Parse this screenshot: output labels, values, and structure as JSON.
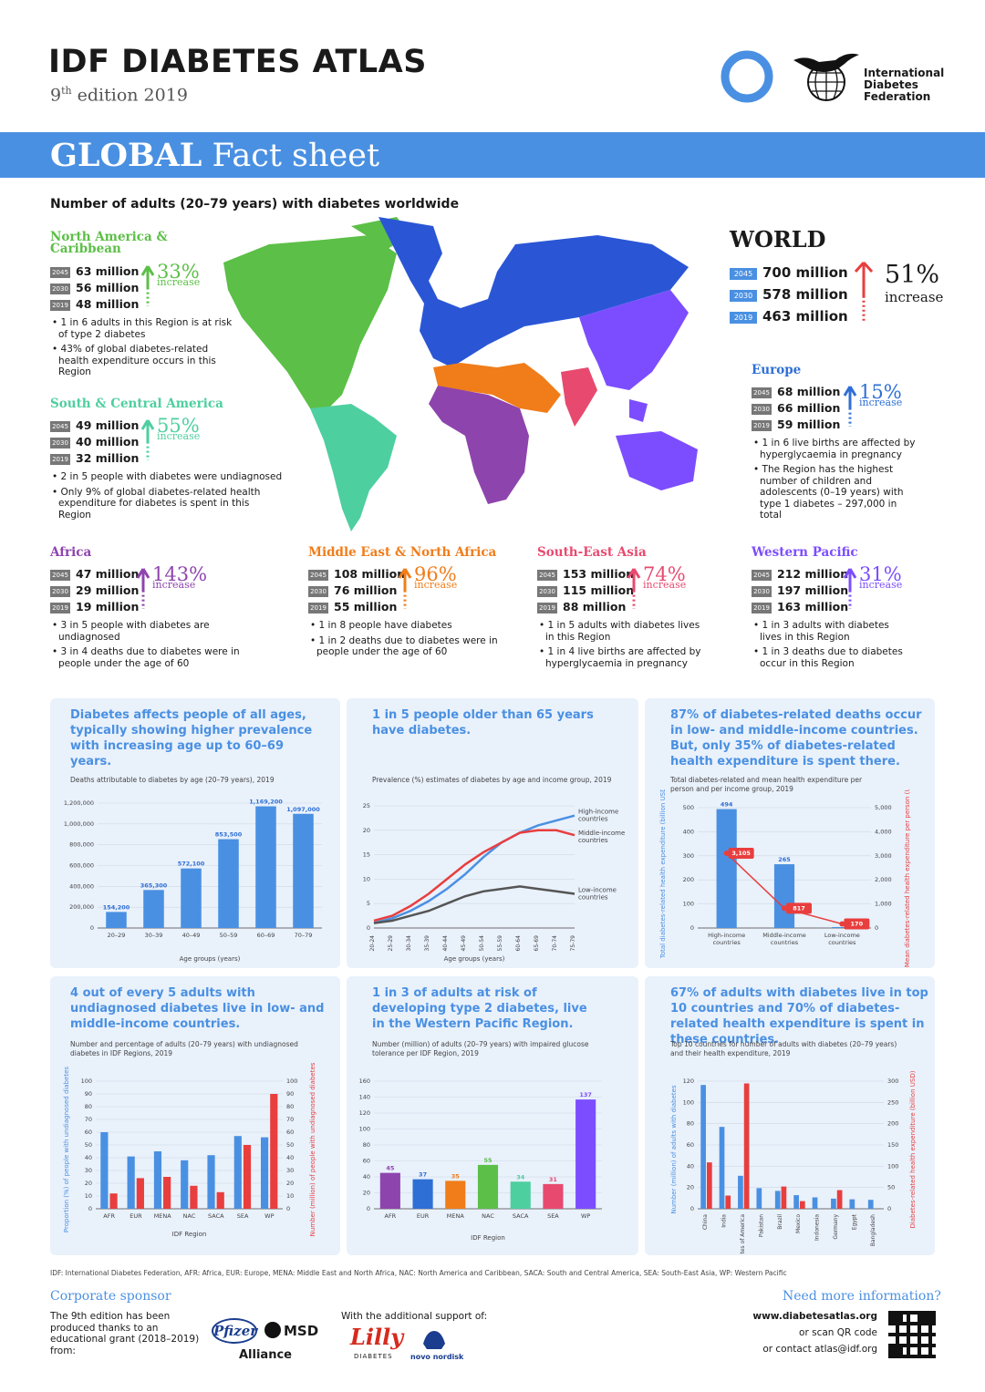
{
  "header": {
    "title": "IDF DIABETES ATLAS",
    "edition_num": "9",
    "edition_sup": "th",
    "edition_rest": " edition 2019",
    "org": [
      "International",
      "Diabetes",
      "Federation"
    ]
  },
  "band": {
    "bold": "GLOBAL",
    "rest": " Fact sheet"
  },
  "map": {
    "title": "Number of adults (20–79 years) with diabetes worldwide"
  },
  "regions": {
    "nac": {
      "name": "North America & Caribbean",
      "stats": [
        {
          "year": "2045",
          "value": "63 million"
        },
        {
          "year": "2030",
          "value": "56 million"
        },
        {
          "year": "2019",
          "value": "48 million"
        }
      ],
      "pct": "33%",
      "inc": "increase",
      "color": "#5cbf47",
      "bullets": [
        "1 in 6 adults in this Region is at risk of type 2 diabetes",
        "43% of global diabetes-related health expenditure occurs in this Region"
      ]
    },
    "saca": {
      "name": "South & Central America",
      "stats": [
        {
          "year": "2045",
          "value": "49 million"
        },
        {
          "year": "2030",
          "value": "40 million"
        },
        {
          "year": "2019",
          "value": "32 million"
        }
      ],
      "pct": "55%",
      "inc": "increase",
      "color": "#4ecfa0",
      "bullets": [
        "2 in 5 people with diabetes were undiagnosed",
        "Only 9% of global diabetes-related health expenditure for diabetes is spent in this Region"
      ]
    },
    "world": {
      "name": "WORLD",
      "stats": [
        {
          "year": "2045",
          "value": "700 million"
        },
        {
          "year": "2030",
          "value": "578 million"
        },
        {
          "year": "2019",
          "value": "463 million"
        }
      ],
      "pct": "51%",
      "inc": "increase",
      "color": "#e83e3e"
    },
    "eur": {
      "name": "Europe",
      "stats": [
        {
          "year": "2045",
          "value": "68 million"
        },
        {
          "year": "2030",
          "value": "66 million"
        },
        {
          "year": "2019",
          "value": "59 million"
        }
      ],
      "pct": "15%",
      "inc": "increase",
      "color": "#2e6fd6",
      "bullets": [
        "1 in 6 live births are affected by hyperglycaemia in pregnancy",
        "The Region has the highest number of children and adolescents (0–19 years) with type 1 diabetes – 297,000 in total"
      ]
    },
    "afr": {
      "name": "Africa",
      "stats": [
        {
          "year": "2045",
          "value": "47 million"
        },
        {
          "year": "2030",
          "value": "29 million"
        },
        {
          "year": "2019",
          "value": "19 million"
        }
      ],
      "pct": "143%",
      "inc": "increase",
      "color": "#8e44ad",
      "bullets": [
        "3 in 5 people with diabetes are undiagnosed",
        "3 in 4 deaths due to diabetes were in people under the age of 60"
      ]
    },
    "mena": {
      "name": "Middle East & North Africa",
      "stats": [
        {
          "year": "2045",
          "value": "108 million"
        },
        {
          "year": "2030",
          "value": "76 million"
        },
        {
          "year": "2019",
          "value": "55 million"
        }
      ],
      "pct": "96%",
      "inc": "increase",
      "color": "#f07d1a",
      "bullets": [
        "1 in 8 people have diabetes",
        "1 in 2 deaths due to diabetes were in people under the age of 60"
      ]
    },
    "sea": {
      "name": "South-East Asia",
      "stats": [
        {
          "year": "2045",
          "value": "153 million"
        },
        {
          "year": "2030",
          "value": "115 million"
        },
        {
          "year": "2019",
          "value": "88 million"
        }
      ],
      "pct": "74%",
      "inc": "increase",
      "color": "#e84a6f",
      "bullets": [
        "1 in 5 adults with diabetes lives in this Region",
        "1 in 4 live births are affected by hyperglycaemia in pregnancy"
      ]
    },
    "wp": {
      "name": "Western Pacific",
      "stats": [
        {
          "year": "2045",
          "value": "212 million"
        },
        {
          "year": "2030",
          "value": "197 million"
        },
        {
          "year": "2019",
          "value": "163 million"
        }
      ],
      "pct": "31%",
      "inc": "increase",
      "color": "#7c4dff",
      "bullets": [
        "1 in 3 adults with diabetes lives in this Region",
        "1 in 3 deaths due to diabetes occur in this Region"
      ]
    }
  },
  "cards": {
    "c1": {
      "head": "Diabetes affects people of all ages, typically showing higher prevalence with increasing age up to 60–69 years.",
      "sub": "Deaths attributable to diabetes by age (20–79 years), 2019"
    },
    "c2": {
      "head": "1 in 5 people older than 65 years have diabetes.",
      "sub": "Prevalence (%) estimates of diabetes by age and income group, 2019"
    },
    "c3": {
      "head": "87% of diabetes-related deaths occur in low- and middle-income countries. But, only 35% of diabetes-related health expenditure is spent there.",
      "sub": "Total diabetes-related and mean health expenditure per person and per income group, 2019"
    },
    "c4": {
      "head": "4 out of every 5 adults with undiagnosed diabetes live in low- and middle-income countries.",
      "sub": "Number and percentage of adults (20–79 years) with undiagnosed diabetes in IDF Regions, 2019"
    },
    "c5": {
      "head": "1 in 3 of adults at risk of developing type 2 diabetes, live in the Western Pacific Region.",
      "sub": "Number (million) of adults (20–79 years) with impaired glucose tolerance per IDF Region, 2019"
    },
    "c6": {
      "head": "67% of adults with diabetes live in top 10 countries and 70% of diabetes-related health expenditure is spent in these countries.",
      "sub": "Top 10 countries for number of adults with diabetes (20–79 years) and their health expenditure, 2019"
    }
  },
  "chart_data": [
    {
      "type": "bar",
      "categories": [
        "20–29",
        "30–39",
        "40–49",
        "50–59",
        "60–69",
        "70–79"
      ],
      "values": [
        154200,
        365300,
        572100,
        853500,
        1169200,
        1097000
      ],
      "labels": [
        "154,200",
        "365,300",
        "572,100",
        "853,500",
        "1,169,200",
        "1,097,000"
      ],
      "yticks": [
        "0",
        "200,000",
        "400,000",
        "600,000",
        "800,000",
        "1,000,000",
        "1,200,000"
      ],
      "ylim": [
        0,
        1200000
      ],
      "xlabel": "Age groups (years)",
      "color": "#4a90e2"
    },
    {
      "type": "line",
      "x": [
        "20-24",
        "25-29",
        "30-34",
        "35-39",
        "40-44",
        "45-49",
        "50-54",
        "55-59",
        "60-64",
        "65-69",
        "70-74",
        "75-79"
      ],
      "yticks": [
        "0",
        "5",
        "10",
        "15",
        "20",
        "25"
      ],
      "ylim": [
        0,
        25
      ],
      "xlabel": "Age groups (years)",
      "series": [
        {
          "name": "High-income countries",
          "color": "#4a90e2",
          "values": [
            1,
            2,
            3.5,
            5.5,
            8,
            11,
            14.5,
            17.5,
            19.5,
            21,
            22,
            23
          ]
        },
        {
          "name": "Middle-income countries",
          "color": "#e83e3e",
          "values": [
            1.5,
            2.5,
            4.5,
            7,
            10,
            13,
            15.5,
            17.5,
            19.5,
            20,
            20,
            19
          ]
        },
        {
          "name": "Low-income countries",
          "color": "#555555",
          "values": [
            1,
            1.5,
            2.5,
            3.5,
            5,
            6.5,
            7.5,
            8,
            8.5,
            8,
            7.5,
            7
          ]
        }
      ]
    },
    {
      "type": "bar",
      "categories": [
        "High-income countries",
        "Middle-income countries",
        "Low-income countries"
      ],
      "values": [
        494,
        265,
        4
      ],
      "bar_labels": [
        "494",
        "265",
        ""
      ],
      "line_values": [
        3105,
        817,
        170
      ],
      "line_labels": [
        "3,105",
        "817",
        "170"
      ],
      "yticks": [
        "0",
        "100",
        "200",
        "300",
        "400",
        "500"
      ],
      "y2ticks": [
        "0",
        "1,000",
        "2,000",
        "3,000",
        "4,000",
        "5,000"
      ],
      "ylabel": "Total diabetes-related health expenditure (billion USD)",
      "y2label": "Mean diabetes-related health expenditure per person (USD)"
    },
    {
      "type": "bar",
      "categories": [
        "AFR",
        "EUR",
        "MENA",
        "NAC",
        "SACA",
        "SEA",
        "WP"
      ],
      "series": [
        {
          "name": "Proportion (%) of people with undiagnosed diabetes",
          "color": "#4a90e2",
          "values": [
            60,
            41,
            45,
            38,
            42,
            57,
            56
          ]
        },
        {
          "name": "Number (million) of people with undiagnosed diabetes",
          "color": "#e83e3e",
          "values": [
            12,
            24,
            25,
            18,
            13,
            50,
            90
          ]
        }
      ],
      "yticks": [
        "0",
        "10",
        "20",
        "30",
        "40",
        "50",
        "60",
        "70",
        "80",
        "90",
        "100"
      ],
      "xlabel": "IDF Region",
      "ylabel": "Proportion (%) of people with undiagnosed diabetes",
      "y2label": "Number (million) of people with undiagnosed diabetes"
    },
    {
      "type": "bar",
      "categories": [
        "AFR",
        "EUR",
        "MENA",
        "NAC",
        "SACA",
        "SEA",
        "WP"
      ],
      "values": [
        45,
        37,
        35,
        55,
        34,
        31,
        137
      ],
      "colors": [
        "#8e44ad",
        "#2e6fd6",
        "#f07d1a",
        "#5cbf47",
        "#4ecfa0",
        "#e84a6f",
        "#7c4dff"
      ],
      "yticks": [
        "0",
        "20",
        "40",
        "60",
        "80",
        "100",
        "120",
        "140",
        "160"
      ],
      "ylim": [
        0,
        160
      ],
      "xlabel": "IDF Region"
    },
    {
      "type": "bar",
      "categories": [
        "China",
        "India",
        "United States of America",
        "Pakistan",
        "Brazil",
        "Mexico",
        "Indonesia",
        "Germany",
        "Egypt",
        "Bangladesh"
      ],
      "series": [
        {
          "name": "Number (million) of adults with diabetes",
          "color": "#4a90e2",
          "values": [
            116.4,
            77,
            31,
            19.4,
            16.8,
            12.8,
            10.7,
            9.5,
            8.9,
            8.4
          ]
        },
        {
          "name": "Diabetes-related health expenditure (billion USD)",
          "color": "#e83e3e",
          "values": [
            109,
            31,
            294.6,
            0,
            52.3,
            18,
            0,
            43.8,
            0,
            0
          ]
        }
      ],
      "yticks": [
        "0",
        "20",
        "40",
        "60",
        "80",
        "100",
        "120"
      ],
      "y2ticks": [
        "0",
        "50",
        "100",
        "150",
        "200",
        "250",
        "300"
      ],
      "ylabel": "Number (million) of adults with diabetes",
      "y2label": "Diabetes-related health expenditure (billion USD)"
    }
  ],
  "footnote": "IDF: International Diabetes Federation, AFR: Africa, EUR: Europe, MENA: Middle East and North Africa, NAC: North America and Caribbean, SACA: South and Central America, SEA: South-East Asia, WP: Western Pacific",
  "footer": {
    "sponsor_title": "Corporate sponsor",
    "sponsor_text": "The 9th edition has been produced thanks to an educational grant (2018–2019) from:",
    "pfizer": "Pfizer",
    "msd": "MSD",
    "alliance": "Alliance",
    "support": "With the additional support of:",
    "lilly": "Lilly",
    "lilly_sub": "DIABETES",
    "novo": "novo nordisk",
    "info_title": "Need more information?",
    "url": "www.diabetesatlas.org",
    "scan": "or scan QR code",
    "contact": "or contact atlas@idf.org"
  }
}
